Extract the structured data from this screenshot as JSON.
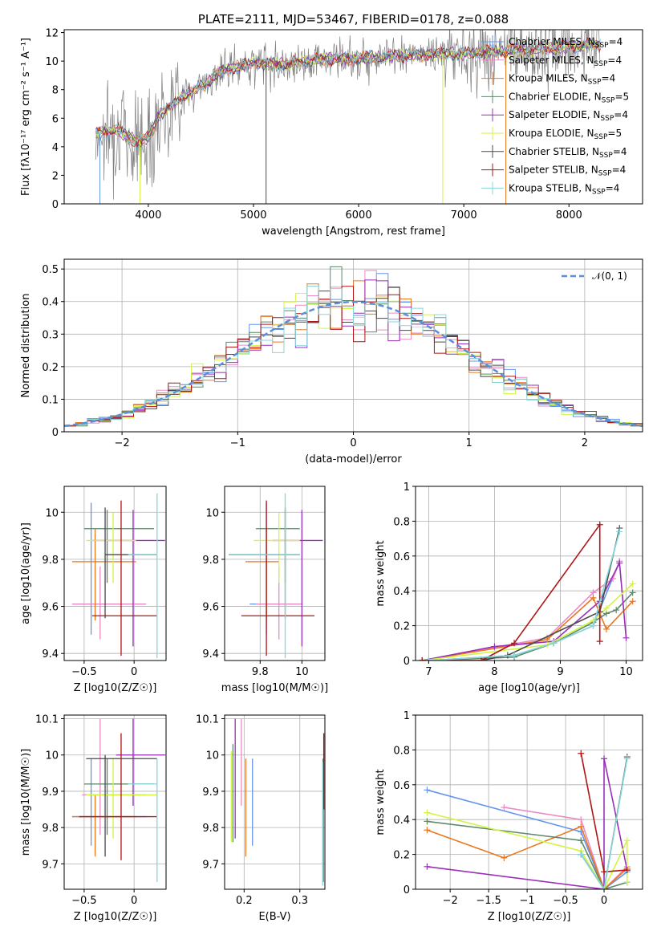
{
  "series_styles": [
    {
      "name": "Chabrier MILES",
      "nssp": "4",
      "color": "#6495ed"
    },
    {
      "name": "Salpeter MILES",
      "nssp": "4",
      "color": "#e98bc4"
    },
    {
      "name": "Kroupa MILES",
      "nssp": "4",
      "color": "#e9781e"
    },
    {
      "name": "Chabrier ELODIE",
      "nssp": "5",
      "color": "#5f876a"
    },
    {
      "name": "Salpeter ELODIE",
      "nssp": "4",
      "color": "#9a2fbc"
    },
    {
      "name": "Kroupa ELODIE",
      "nssp": "5",
      "color": "#d2f542"
    },
    {
      "name": "Chabrier STELIB",
      "nssp": "4",
      "color": "#4a4a4a"
    },
    {
      "name": "Salpeter STELIB",
      "nssp": "4",
      "color": "#b01414"
    },
    {
      "name": "Kroupa STELIB",
      "nssp": "4",
      "color": "#86d7da"
    }
  ],
  "chart_data": [
    {
      "id": "spectrum",
      "type": "line",
      "title": "PLATE=2111, MJD=53467, FIBERID=0178, z=0.088",
      "xlabel": "wavelength [Angstrom, rest frame]",
      "ylabel": "Flux [fλ10⁻¹⁷ erg cm⁻² s⁻¹ A⁻¹]",
      "xlim": [
        3200,
        8700
      ],
      "ylim": [
        0,
        12.2
      ],
      "xticks": [
        4000,
        5000,
        6000,
        7000,
        8000
      ],
      "yticks": [
        0,
        2,
        4,
        6,
        8,
        10,
        12
      ],
      "legend_position": "right",
      "continuum": {
        "x": [
          3500,
          3700,
          3900,
          4000,
          4100,
          4300,
          4500,
          4700,
          5000,
          5300,
          5600,
          6000,
          6400,
          6800,
          7200,
          7600,
          8000,
          8300
        ],
        "y": [
          4.9,
          5.2,
          4.3,
          4.6,
          6.2,
          7.4,
          8.2,
          9.3,
          9.9,
          9.8,
          10.1,
          10.2,
          10.4,
          10.5,
          10.6,
          10.8,
          11.0,
          11.2
        ]
      }
    },
    {
      "id": "residuals",
      "type": "histogram",
      "xlabel": "(data-model)/error",
      "ylabel": "Normed distribution",
      "xlim": [
        -2.5,
        2.5
      ],
      "ylim": [
        0,
        0.53
      ],
      "xticks": [
        -2,
        -1,
        0,
        1,
        2
      ],
      "yticks": [
        0.0,
        0.1,
        0.2,
        0.3,
        0.4,
        0.5
      ],
      "legend": "𝒩(0, 1)",
      "legend_position": "top-right",
      "bin_width": 0.1
    },
    {
      "id": "age_vs_Z",
      "type": "scatter",
      "xlabel": "Z [log10(Z/Z☉)]",
      "ylabel": "age [log10(age/yr)]",
      "xlim": [
        -0.7,
        0.32
      ],
      "ylim": [
        9.37,
        10.11
      ],
      "xticks": [
        -0.5,
        0.0
      ],
      "yticks": [
        9.4,
        9.6,
        9.8,
        10.0
      ],
      "points": [
        {
          "s": 0,
          "x": -0.43,
          "y": 9.61,
          "ex": [
            -0.62,
            0.12
          ],
          "ey": [
            9.48,
            10.04
          ]
        },
        {
          "s": 1,
          "x": -0.34,
          "y": 9.61,
          "ex": [
            -0.62,
            0.12
          ],
          "ey": [
            9.46,
            9.77
          ]
        },
        {
          "s": 2,
          "x": -0.39,
          "y": 9.79,
          "ex": [
            -0.62,
            0.02
          ],
          "ey": [
            9.54,
            9.93
          ]
        },
        {
          "s": 3,
          "x": -0.27,
          "y": 9.93,
          "ex": [
            -0.5,
            0.2
          ],
          "ey": [
            9.7,
            10.01
          ]
        },
        {
          "s": 4,
          "x": -0.01,
          "y": 9.88,
          "ex": [
            -0.42,
            0.31
          ],
          "ey": [
            9.43,
            10.01
          ]
        },
        {
          "s": 5,
          "x": -0.21,
          "y": 9.88,
          "ex": [
            -0.48,
            0.02
          ],
          "ey": [
            9.7,
            10.0
          ]
        },
        {
          "s": 6,
          "x": -0.29,
          "y": 9.82,
          "ex": [
            -0.29,
            0.23
          ],
          "ey": [
            9.55,
            10.02
          ]
        },
        {
          "s": 7,
          "x": -0.13,
          "y": 9.56,
          "ex": [
            -0.42,
            0.23
          ],
          "ey": [
            9.39,
            10.05
          ]
        },
        {
          "s": 8,
          "x": 0.23,
          "y": 9.82,
          "ex": [
            -0.06,
            0.23
          ],
          "ey": [
            9.38,
            10.08
          ]
        }
      ]
    },
    {
      "id": "age_vs_mass",
      "type": "scatter",
      "xlabel": "mass [log10(M/M☉)]",
      "ylabel": "",
      "xlim": [
        9.63,
        10.11
      ],
      "ylim": [
        9.37,
        10.11
      ],
      "xticks": [
        9.8,
        10.0
      ],
      "yticks": [
        9.4,
        9.6,
        9.8,
        10.0
      ],
      "points": [
        {
          "s": 0,
          "x": 9.83,
          "y": 9.61,
          "ex": [
            9.75,
            9.99
          ],
          "ey": [
            9.48,
            10.04
          ]
        },
        {
          "s": 1,
          "x": 9.89,
          "y": 9.61,
          "ex": [
            9.78,
            10.0
          ],
          "ey": [
            9.46,
            9.77
          ]
        },
        {
          "s": 2,
          "x": 9.83,
          "y": 9.79,
          "ex": [
            9.73,
            9.89
          ],
          "ey": [
            9.54,
            9.93
          ]
        },
        {
          "s": 3,
          "x": 9.92,
          "y": 9.93,
          "ex": [
            9.78,
            9.99
          ],
          "ey": [
            9.7,
            10.01
          ]
        },
        {
          "s": 4,
          "x": 10.0,
          "y": 9.88,
          "ex": [
            9.86,
            10.1
          ],
          "ey": [
            9.43,
            10.01
          ]
        },
        {
          "s": 5,
          "x": 9.89,
          "y": 9.88,
          "ex": [
            9.77,
            9.99
          ],
          "ey": [
            9.7,
            10.0
          ]
        },
        {
          "s": 6,
          "x": 9.92,
          "y": 9.82,
          "ex": [
            9.65,
            9.99
          ],
          "ey": [
            9.55,
            10.02
          ]
        },
        {
          "s": 7,
          "x": 9.83,
          "y": 9.56,
          "ex": [
            9.71,
            10.06
          ],
          "ey": [
            9.39,
            10.05
          ]
        },
        {
          "s": 8,
          "x": 9.92,
          "y": 9.82,
          "ex": [
            9.65,
            9.99
          ],
          "ey": [
            9.38,
            10.08
          ]
        }
      ]
    },
    {
      "id": "mass_weight_vs_age",
      "type": "line",
      "xlabel": "age [log10(age/yr)]",
      "ylabel": "mass weight",
      "xlim": [
        6.8,
        10.25
      ],
      "ylim": [
        0,
        1.0
      ],
      "xticks": [
        7,
        8,
        9,
        10
      ],
      "yticks": [
        0.0,
        0.2,
        0.4,
        0.6,
        0.8,
        1.0
      ],
      "series_points": [
        {
          "s": 0,
          "x": [
            7.0,
            8.3,
            8.9,
            9.5,
            9.9
          ],
          "y": [
            0.0,
            0.03,
            0.1,
            0.2,
            0.57
          ]
        },
        {
          "s": 1,
          "x": [
            6.9,
            8.8,
            9.5,
            9.8,
            9.9
          ],
          "y": [
            0.0,
            0.13,
            0.39,
            0.47,
            0.57
          ]
        },
        {
          "s": 2,
          "x": [
            6.9,
            8.8,
            9.5,
            9.7,
            10.1
          ],
          "y": [
            0.0,
            0.12,
            0.36,
            0.18,
            0.34
          ]
        },
        {
          "s": 3,
          "x": [
            7.0,
            8.3,
            8.9,
            9.5,
            9.7,
            9.85,
            10.1
          ],
          "y": [
            0.0,
            0.02,
            0.1,
            0.22,
            0.27,
            0.29,
            0.39
          ]
        },
        {
          "s": 4,
          "x": [
            6.9,
            8.0,
            8.9,
            9.6,
            9.9,
            10.0
          ],
          "y": [
            0.0,
            0.08,
            0.11,
            0.34,
            0.56,
            0.13
          ]
        },
        {
          "s": 5,
          "x": [
            6.9,
            8.8,
            9.5,
            9.7,
            10.1
          ],
          "y": [
            0.0,
            0.09,
            0.23,
            0.3,
            0.44
          ]
        },
        {
          "s": 6,
          "x": [
            6.9,
            7.8,
            8.2,
            9.6,
            9.9
          ],
          "y": [
            0.0,
            0.0,
            0.03,
            0.28,
            0.76
          ]
        },
        {
          "s": 7,
          "x": [
            6.9,
            7.8,
            8.3,
            9.6,
            9.6
          ],
          "y": [
            0.0,
            0.0,
            0.1,
            0.78,
            0.11
          ]
        },
        {
          "s": 8,
          "x": [
            7.0,
            8.3,
            8.9,
            9.5,
            9.9
          ],
          "y": [
            0.0,
            0.03,
            0.1,
            0.2,
            0.74
          ]
        }
      ]
    },
    {
      "id": "mass_vs_Z",
      "type": "scatter",
      "xlabel": "Z [log10(Z/Z☉)]",
      "ylabel": "mass [log10(M/M☉)]",
      "xlim": [
        -0.7,
        0.32
      ],
      "ylim": [
        9.63,
        10.11
      ],
      "xticks": [
        -0.5,
        0.0
      ],
      "yticks": [
        9.7,
        9.8,
        9.9,
        10.0,
        10.1
      ],
      "points": [
        {
          "s": 0,
          "x": -0.43,
          "y": 9.83,
          "ex": [
            -0.62,
            0.12
          ],
          "ey": [
            9.75,
            9.99
          ]
        },
        {
          "s": 1,
          "x": -0.34,
          "y": 9.89,
          "ex": [
            -0.52,
            0.12
          ],
          "ey": [
            9.78,
            10.1
          ]
        },
        {
          "s": 2,
          "x": -0.39,
          "y": 9.83,
          "ex": [
            -0.62,
            0.02
          ],
          "ey": [
            9.72,
            9.89
          ]
        },
        {
          "s": 3,
          "x": -0.27,
          "y": 9.92,
          "ex": [
            -0.5,
            0.2
          ],
          "ey": [
            9.78,
            9.99
          ]
        },
        {
          "s": 4,
          "x": -0.01,
          "y": 10.0,
          "ex": [
            -0.18,
            0.31
          ],
          "ey": [
            9.86,
            10.1
          ]
        },
        {
          "s": 5,
          "x": -0.21,
          "y": 9.89,
          "ex": [
            -0.48,
            0.23
          ],
          "ey": [
            9.77,
            9.99
          ]
        },
        {
          "s": 6,
          "x": -0.29,
          "y": 9.99,
          "ex": [
            -0.48,
            0.23
          ],
          "ey": [
            9.72,
            10.0
          ]
        },
        {
          "s": 7,
          "x": -0.13,
          "y": 9.83,
          "ex": [
            -0.55,
            0.23
          ],
          "ey": [
            9.71,
            10.06
          ]
        },
        {
          "s": 8,
          "x": 0.23,
          "y": 9.92,
          "ex": [
            -0.06,
            0.23
          ],
          "ey": [
            9.65,
            9.99
          ]
        }
      ]
    },
    {
      "id": "mass_vs_ebv",
      "type": "scatter",
      "xlabel": "E(B-V)",
      "ylabel": "",
      "xlim": [
        0.165,
        0.345
      ],
      "ylim": [
        9.63,
        10.11
      ],
      "xticks": [
        0.2,
        0.3
      ],
      "yticks": [
        9.7,
        9.8,
        9.9,
        10.0,
        10.1
      ],
      "points": [
        {
          "s": 0,
          "x": 0.215,
          "y": 9.83,
          "ey": [
            9.75,
            9.99
          ]
        },
        {
          "s": 1,
          "x": 0.195,
          "y": 9.89,
          "ey": [
            9.86,
            10.1
          ]
        },
        {
          "s": 2,
          "x": 0.203,
          "y": 9.83,
          "ey": [
            9.72,
            9.99
          ]
        },
        {
          "s": 3,
          "x": 0.18,
          "y": 9.92,
          "ey": [
            9.76,
            10.03
          ]
        },
        {
          "s": 4,
          "x": 0.184,
          "y": 10.0,
          "ey": [
            9.77,
            10.1
          ]
        },
        {
          "s": 5,
          "x": 0.177,
          "y": 9.89,
          "ey": [
            9.76,
            10.01
          ]
        },
        {
          "s": 6,
          "x": 0.342,
          "y": 9.92,
          "ey": [
            9.65,
            9.99
          ]
        },
        {
          "s": 7,
          "x": 0.343,
          "y": 9.99,
          "ey": [
            9.85,
            10.06
          ]
        },
        {
          "s": 8,
          "x": 0.341,
          "y": 9.92,
          "ey": [
            9.64,
            9.98
          ]
        }
      ]
    },
    {
      "id": "mass_weight_vs_Z",
      "type": "line",
      "xlabel": "Z [log10(Z/Z☉)]",
      "ylabel": "mass weight",
      "xlim": [
        -2.45,
        0.5
      ],
      "ylim": [
        0,
        1.0
      ],
      "xticks": [
        -2.0,
        -1.5,
        -1.0,
        -0.5,
        0.0
      ],
      "yticks": [
        0.0,
        0.2,
        0.4,
        0.6,
        0.8,
        1.0
      ],
      "series_points": [
        {
          "s": 0,
          "x": [
            -2.3,
            -0.3,
            0.0,
            0.3
          ],
          "y": [
            0.57,
            0.33,
            0.0,
            0.1
          ]
        },
        {
          "s": 1,
          "x": [
            -1.3,
            -0.3,
            0.0,
            0.3
          ],
          "y": [
            0.47,
            0.4,
            0.0,
            0.13
          ]
        },
        {
          "s": 2,
          "x": [
            -2.3,
            -1.3,
            -0.3,
            0.0,
            0.3
          ],
          "y": [
            0.34,
            0.18,
            0.36,
            0.0,
            0.12
          ]
        },
        {
          "s": 3,
          "x": [
            -2.3,
            -0.3,
            0.0,
            0.3
          ],
          "y": [
            0.39,
            0.28,
            0.0,
            0.04
          ]
        },
        {
          "s": 4,
          "x": [
            -2.3,
            0.0,
            0.0,
            0.3
          ],
          "y": [
            0.13,
            0.0,
            0.75,
            0.11
          ]
        },
        {
          "s": 5,
          "x": [
            -2.3,
            -0.3,
            0.0,
            0.3,
            0.3
          ],
          "y": [
            0.44,
            0.22,
            0.0,
            0.28,
            0.04
          ]
        },
        {
          "s": 6,
          "x": [
            -0.3,
            0.0,
            0.3
          ],
          "y": [
            0.2,
            0.0,
            0.76
          ]
        },
        {
          "s": 7,
          "x": [
            -0.3,
            0.0,
            0.3
          ],
          "y": [
            0.78,
            0.1,
            0.11
          ]
        },
        {
          "s": 8,
          "x": [
            -0.3,
            0.0,
            0.3
          ],
          "y": [
            0.2,
            0.0,
            0.75
          ]
        }
      ]
    }
  ]
}
